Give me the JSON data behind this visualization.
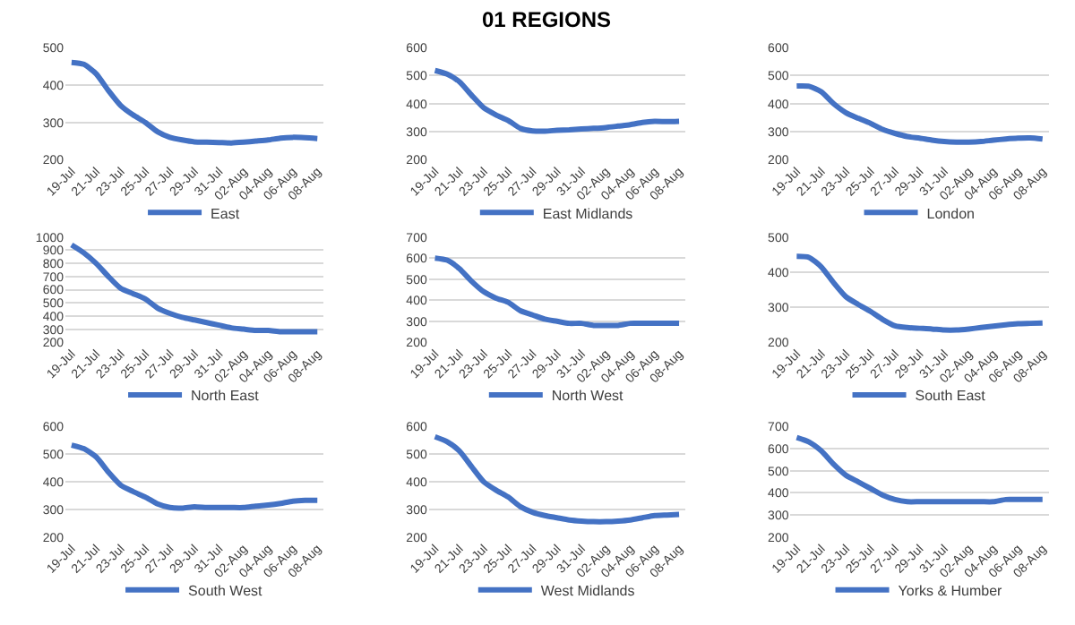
{
  "chart_data": [
    {
      "type": "line",
      "categories": [
        "19-Jul",
        null,
        "21-Jul",
        null,
        "23-Jul",
        null,
        "25-Jul",
        null,
        "27-Jul",
        null,
        "29-Jul",
        null,
        "31-Jul",
        null,
        "02-Aug",
        null,
        "04-Aug",
        null,
        "06-Aug",
        null,
        "08-Aug"
      ],
      "ylim": [
        200,
        500
      ],
      "yticks": [
        200,
        300,
        400,
        500
      ],
      "grid": "y",
      "legend": "bottom",
      "marker": "none",
      "line_style": "solid",
      "series": [
        {
          "name": "East",
          "color": "#4472c4",
          "values": [
            460,
            455,
            430,
            385,
            345,
            320,
            300,
            275,
            260,
            253,
            248,
            247,
            246,
            245,
            247,
            250,
            253,
            258,
            260,
            259,
            257
          ]
        }
      ]
    },
    {
      "type": "line",
      "title": "01 REGIONS",
      "categories": [
        "19-Jul",
        null,
        "21-Jul",
        null,
        "23-Jul",
        null,
        "25-Jul",
        null,
        "27-Jul",
        null,
        "29-Jul",
        null,
        "31-Jul",
        null,
        "02-Aug",
        null,
        "04-Aug",
        null,
        "06-Aug",
        null,
        "08-Aug"
      ],
      "ylim": [
        200,
        600
      ],
      "yticks": [
        200,
        300,
        400,
        500,
        600
      ],
      "grid": "y",
      "legend": "bottom",
      "marker": "none",
      "line_style": "solid",
      "series": [
        {
          "name": "East Midlands",
          "color": "#4472c4",
          "values": [
            518,
            505,
            478,
            430,
            385,
            360,
            340,
            312,
            303,
            302,
            305,
            307,
            310,
            312,
            315,
            320,
            325,
            333,
            337,
            336,
            337
          ]
        }
      ]
    },
    {
      "type": "line",
      "categories": [
        "19-Jul",
        null,
        "21-Jul",
        null,
        "23-Jul",
        null,
        "25-Jul",
        null,
        "27-Jul",
        null,
        "29-Jul",
        null,
        "31-Jul",
        null,
        "02-Aug",
        null,
        "04-Aug",
        null,
        "06-Aug",
        null,
        "08-Aug"
      ],
      "ylim": [
        200,
        600
      ],
      "yticks": [
        200,
        300,
        400,
        500,
        600
      ],
      "grid": "y",
      "legend": "bottom",
      "marker": "none",
      "line_style": "solid",
      "series": [
        {
          "name": "London",
          "color": "#4472c4",
          "values": [
            463,
            462,
            442,
            400,
            368,
            348,
            330,
            308,
            294,
            283,
            277,
            270,
            265,
            263,
            263,
            265,
            270,
            274,
            277,
            278,
            274
          ]
        }
      ]
    },
    {
      "type": "line",
      "categories": [
        "19-Jul",
        null,
        "21-Jul",
        null,
        "23-Jul",
        null,
        "25-Jul",
        null,
        "27-Jul",
        null,
        "29-Jul",
        null,
        "31-Jul",
        null,
        "02-Aug",
        null,
        "04-Aug",
        null,
        "06-Aug",
        null,
        "08-Aug"
      ],
      "ylim": [
        200,
        1000
      ],
      "yticks": [
        200,
        300,
        400,
        500,
        600,
        700,
        800,
        900,
        1000
      ],
      "grid": "y",
      "legend": "bottom",
      "marker": "none",
      "line_style": "solid",
      "series": [
        {
          "name": "North East",
          "color": "#4472c4",
          "values": [
            940,
            880,
            800,
            700,
            610,
            570,
            530,
            460,
            420,
            390,
            370,
            350,
            330,
            310,
            300,
            290,
            290,
            280,
            280,
            280,
            280
          ]
        }
      ]
    },
    {
      "type": "line",
      "categories": [
        "19-Jul",
        null,
        "21-Jul",
        null,
        "23-Jul",
        null,
        "25-Jul",
        null,
        "27-Jul",
        null,
        "29-Jul",
        null,
        "31-Jul",
        null,
        "02-Aug",
        null,
        "04-Aug",
        null,
        "06-Aug",
        null,
        "08-Aug"
      ],
      "ylim": [
        200,
        700
      ],
      "yticks": [
        200,
        300,
        400,
        500,
        600,
        700
      ],
      "grid": "y",
      "legend": "bottom",
      "marker": "none",
      "line_style": "solid",
      "series": [
        {
          "name": "North West",
          "color": "#4472c4",
          "values": [
            600,
            590,
            550,
            490,
            440,
            410,
            390,
            350,
            330,
            310,
            300,
            290,
            290,
            280,
            280,
            280,
            290,
            290,
            290,
            290,
            290
          ]
        }
      ]
    },
    {
      "type": "line",
      "categories": [
        "19-Jul",
        null,
        "21-Jul",
        null,
        "23-Jul",
        null,
        "25-Jul",
        null,
        "27-Jul",
        null,
        "29-Jul",
        null,
        "31-Jul",
        null,
        "02-Aug",
        null,
        "04-Aug",
        null,
        "06-Aug",
        null,
        "08-Aug"
      ],
      "ylim": [
        200,
        500
      ],
      "yticks": [
        200,
        300,
        400,
        500
      ],
      "grid": "y",
      "legend": "bottom",
      "marker": "none",
      "line_style": "solid",
      "series": [
        {
          "name": "South East",
          "color": "#4472c4",
          "values": [
            445,
            442,
            415,
            370,
            330,
            308,
            288,
            265,
            247,
            242,
            240,
            238,
            235,
            235,
            238,
            242,
            246,
            250,
            253,
            254,
            255
          ]
        }
      ]
    },
    {
      "type": "line",
      "categories": [
        "19-Jul",
        null,
        "21-Jul",
        null,
        "23-Jul",
        null,
        "25-Jul",
        null,
        "27-Jul",
        null,
        "29-Jul",
        null,
        "31-Jul",
        null,
        "02-Aug",
        null,
        "04-Aug",
        null,
        "06-Aug",
        null,
        "08-Aug"
      ],
      "ylim": [
        200,
        600
      ],
      "yticks": [
        200,
        300,
        400,
        500,
        600
      ],
      "grid": "y",
      "legend": "bottom",
      "marker": "none",
      "line_style": "solid",
      "series": [
        {
          "name": "South West",
          "color": "#4472c4",
          "values": [
            533,
            520,
            490,
            435,
            388,
            365,
            345,
            320,
            307,
            305,
            310,
            307,
            307,
            307,
            307,
            312,
            316,
            322,
            330,
            333,
            333
          ]
        }
      ]
    },
    {
      "type": "line",
      "categories": [
        "19-Jul",
        null,
        "21-Jul",
        null,
        "23-Jul",
        null,
        "25-Jul",
        null,
        "27-Jul",
        null,
        "29-Jul",
        null,
        "31-Jul",
        null,
        "02-Aug",
        null,
        "04-Aug",
        null,
        "06-Aug",
        null,
        "08-Aug"
      ],
      "ylim": [
        200,
        600
      ],
      "yticks": [
        200,
        300,
        400,
        500,
        600
      ],
      "grid": "y",
      "legend": "bottom",
      "marker": "none",
      "line_style": "solid",
      "series": [
        {
          "name": "West Midlands",
          "color": "#4472c4",
          "values": [
            563,
            545,
            512,
            455,
            400,
            370,
            345,
            310,
            290,
            278,
            270,
            262,
            258,
            256,
            256,
            258,
            262,
            270,
            278,
            280,
            282
          ]
        }
      ]
    },
    {
      "type": "line",
      "categories": [
        "19-Jul",
        null,
        "21-Jul",
        null,
        "23-Jul",
        null,
        "25-Jul",
        null,
        "27-Jul",
        null,
        "29-Jul",
        null,
        "31-Jul",
        null,
        "02-Aug",
        null,
        "04-Aug",
        null,
        "06-Aug",
        null,
        "08-Aug"
      ],
      "ylim": [
        200,
        700
      ],
      "yticks": [
        200,
        300,
        400,
        500,
        600,
        700
      ],
      "grid": "y",
      "legend": "bottom",
      "marker": "none",
      "line_style": "solid",
      "series": [
        {
          "name": "Yorks & Humber",
          "color": "#4472c4",
          "values": [
            650,
            630,
            590,
            530,
            480,
            450,
            420,
            390,
            370,
            360,
            360,
            360,
            360,
            360,
            360,
            360,
            360,
            370,
            370,
            370,
            370
          ]
        }
      ]
    }
  ]
}
